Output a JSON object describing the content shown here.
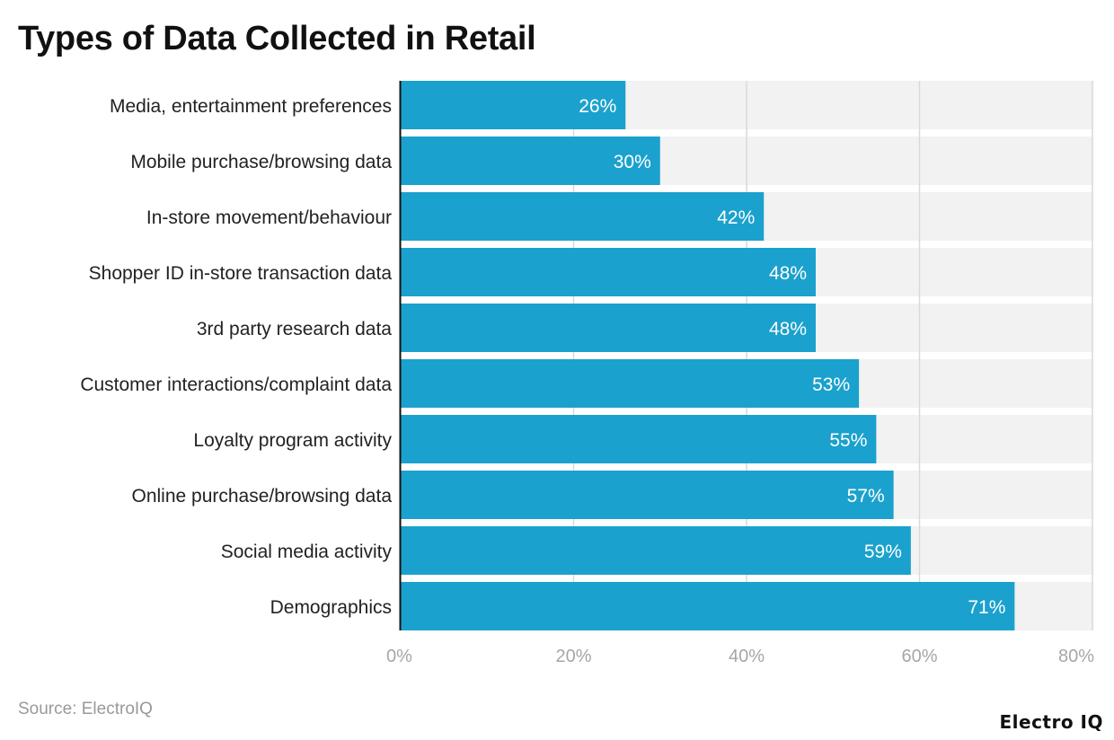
{
  "title": "Types of Data Collected in Retail",
  "source": "Source: ElectroIQ",
  "logo": "Electro IQ",
  "colors": {
    "bar": "#1ba1cd",
    "band": "#f2f2f2",
    "grid": "#d9d9d9",
    "tick": "#a6a6a6"
  },
  "chart_data": {
    "type": "bar",
    "orientation": "horizontal",
    "title": "Types of Data Collected in Retail",
    "categories": [
      "Media, entertainment preferences",
      "Mobile purchase/browsing data",
      "In-store movement/behaviour",
      "Shopper ID in-store transaction data",
      "3rd party research data",
      "Customer interactions/complaint data",
      "Loyalty program activity",
      "Online purchase/browsing data",
      "Social media activity",
      "Demographics"
    ],
    "values": [
      26,
      30,
      42,
      48,
      48,
      53,
      55,
      57,
      59,
      71
    ],
    "data_labels": [
      "26%",
      "30%",
      "42%",
      "48%",
      "48%",
      "53%",
      "55%",
      "57%",
      "59%",
      "71%"
    ],
    "xlim": [
      0,
      80
    ],
    "xticks": [
      0,
      20,
      40,
      60,
      80
    ],
    "xtick_labels": [
      "0%",
      "20%",
      "40%",
      "60%",
      "80%"
    ],
    "grid": true
  }
}
